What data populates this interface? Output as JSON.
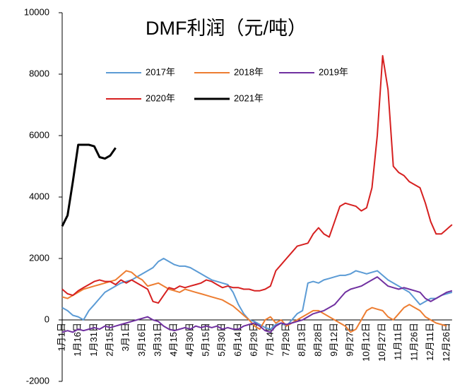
{
  "chart_data": {
    "type": "line",
    "title": "DMF利润（元/吨）",
    "categories": [
      "1月1日",
      null,
      null,
      "1月16日",
      null,
      null,
      "1月31日",
      null,
      null,
      "2月15日",
      null,
      null,
      "3月1日",
      null,
      null,
      "3月16日",
      null,
      null,
      "3月31日",
      null,
      null,
      "4月15日",
      null,
      null,
      "4月30日",
      null,
      null,
      "5月15日",
      null,
      null,
      "5月30日",
      null,
      null,
      "6月14日",
      null,
      null,
      "6月29日",
      null,
      null,
      "7月14日",
      null,
      null,
      "7月29日",
      null,
      null,
      "8月13日",
      null,
      null,
      "8月28日",
      null,
      null,
      "9月12日",
      null,
      null,
      "9月27日",
      null,
      null,
      "10月12日",
      null,
      null,
      "10月27日",
      null,
      null,
      "11月11日",
      null,
      null,
      "11月26日",
      null,
      null,
      "12月11日",
      null,
      null,
      "12月26日",
      null
    ],
    "series": [
      {
        "name": "2017年",
        "color": "#5b9bd5",
        "values": [
          400,
          300,
          150,
          100,
          0,
          300,
          500,
          700,
          900,
          1000,
          1100,
          1200,
          1250,
          1300,
          1400,
          1500,
          1600,
          1700,
          1900,
          2000,
          1900,
          1800,
          1750,
          1750,
          1700,
          1600,
          1500,
          1400,
          1300,
          1250,
          1200,
          1150,
          900,
          500,
          200,
          0,
          -50,
          -150,
          -250,
          -300,
          -150,
          -100,
          -200,
          0,
          200,
          300,
          1200,
          1250,
          1200,
          1300,
          1350,
          1400,
          1450,
          1450,
          1500,
          1600,
          1550,
          1500,
          1550,
          1600,
          1450,
          1300,
          1200,
          1100,
          1000,
          900,
          700,
          500,
          600,
          700,
          700,
          800,
          850,
          900
        ]
      },
      {
        "name": "2018年",
        "color": "#ed7d31",
        "values": [
          750,
          700,
          800,
          900,
          1000,
          1050,
          1100,
          1150,
          1200,
          1250,
          1300,
          1450,
          1600,
          1550,
          1400,
          1300,
          1100,
          1150,
          1200,
          1100,
          1000,
          950,
          900,
          1000,
          950,
          900,
          850,
          800,
          750,
          700,
          650,
          550,
          450,
          300,
          150,
          0,
          -200,
          -300,
          0,
          100,
          -100,
          0,
          -200,
          -100,
          0,
          100,
          200,
          300,
          300,
          200,
          100,
          0,
          -100,
          -200,
          -400,
          -300,
          0,
          300,
          400,
          350,
          300,
          100,
          0,
          200,
          400,
          500,
          400,
          300,
          100,
          0,
          -100,
          -150,
          -200,
          null
        ]
      },
      {
        "name": "2019年",
        "color": "#7030a0",
        "values": [
          -400,
          -350,
          -400,
          -300,
          -350,
          -300,
          -250,
          -300,
          -200,
          -250,
          -200,
          -150,
          -100,
          -50,
          0,
          50,
          100,
          0,
          -50,
          -200,
          -300,
          -350,
          -300,
          -250,
          -300,
          -200,
          -250,
          -200,
          -250,
          -200,
          -300,
          -250,
          -300,
          -300,
          -200,
          -150,
          -100,
          -200,
          -350,
          -400,
          -200,
          -100,
          -150,
          -100,
          -50,
          0,
          100,
          200,
          250,
          300,
          400,
          500,
          700,
          900,
          1000,
          1050,
          1100,
          1200,
          1300,
          1400,
          1250,
          1100,
          1050,
          1000,
          1050,
          1000,
          950,
          900,
          700,
          600,
          700,
          800,
          900,
          950
        ]
      },
      {
        "name": "2020年",
        "color": "#d62020",
        "values": [
          1000,
          850,
          800,
          950,
          1050,
          1150,
          1250,
          1300,
          1250,
          1250,
          1150,
          1300,
          1200,
          1300,
          1200,
          1100,
          1000,
          600,
          550,
          800,
          1050,
          1000,
          1100,
          1050,
          1100,
          1150,
          1200,
          1300,
          1250,
          1150,
          1050,
          1100,
          1050,
          1050,
          1000,
          1000,
          950,
          950,
          1000,
          1100,
          1600,
          1800,
          2000,
          2200,
          2400,
          2450,
          2500,
          2800,
          3000,
          2800,
          2700,
          3200,
          3700,
          3800,
          3750,
          3700,
          3550,
          3650,
          4300,
          6000,
          8600,
          7500,
          5000,
          4800,
          4700,
          4500,
          4400,
          4300,
          3800,
          3200,
          2800,
          2800,
          2950,
          3100
        ]
      },
      {
        "name": "2021年",
        "color": "#000000",
        "values": [
          3050,
          3400,
          4500,
          5700,
          5700,
          5700,
          5650,
          5300,
          5250,
          5350,
          5600,
          null,
          null,
          null,
          null,
          null,
          null,
          null,
          null,
          null,
          null,
          null,
          null,
          null,
          null,
          null,
          null,
          null,
          null,
          null,
          null,
          null,
          null,
          null,
          null,
          null,
          null,
          null,
          null,
          null,
          null,
          null,
          null,
          null,
          null,
          null,
          null,
          null,
          null,
          null,
          null,
          null,
          null,
          null,
          null,
          null,
          null,
          null,
          null,
          null,
          null,
          null,
          null,
          null,
          null,
          null,
          null,
          null,
          null,
          null,
          null,
          null,
          null,
          null
        ]
      }
    ],
    "ylim": [
      -2000,
      10000
    ],
    "yticks": [
      -2000,
      0,
      2000,
      4000,
      6000,
      8000,
      10000
    ],
    "legend": "top"
  }
}
